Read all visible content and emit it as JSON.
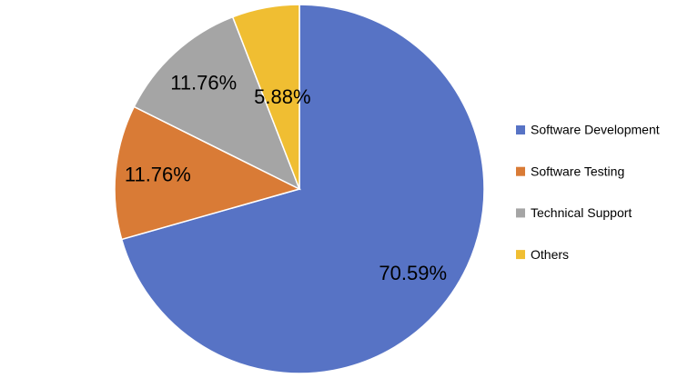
{
  "chart_data": {
    "type": "pie",
    "categories": [
      "Software Development",
      "Software Testing",
      "Technical Support",
      "Others"
    ],
    "values": [
      70.59,
      11.76,
      11.76,
      5.88
    ],
    "value_labels": [
      "70.59%",
      "11.76%",
      "11.76%",
      "5.88%"
    ],
    "colors": [
      "#5773c5",
      "#d97b36",
      "#a5a5a5",
      "#f0be32"
    ],
    "legend": "right"
  }
}
